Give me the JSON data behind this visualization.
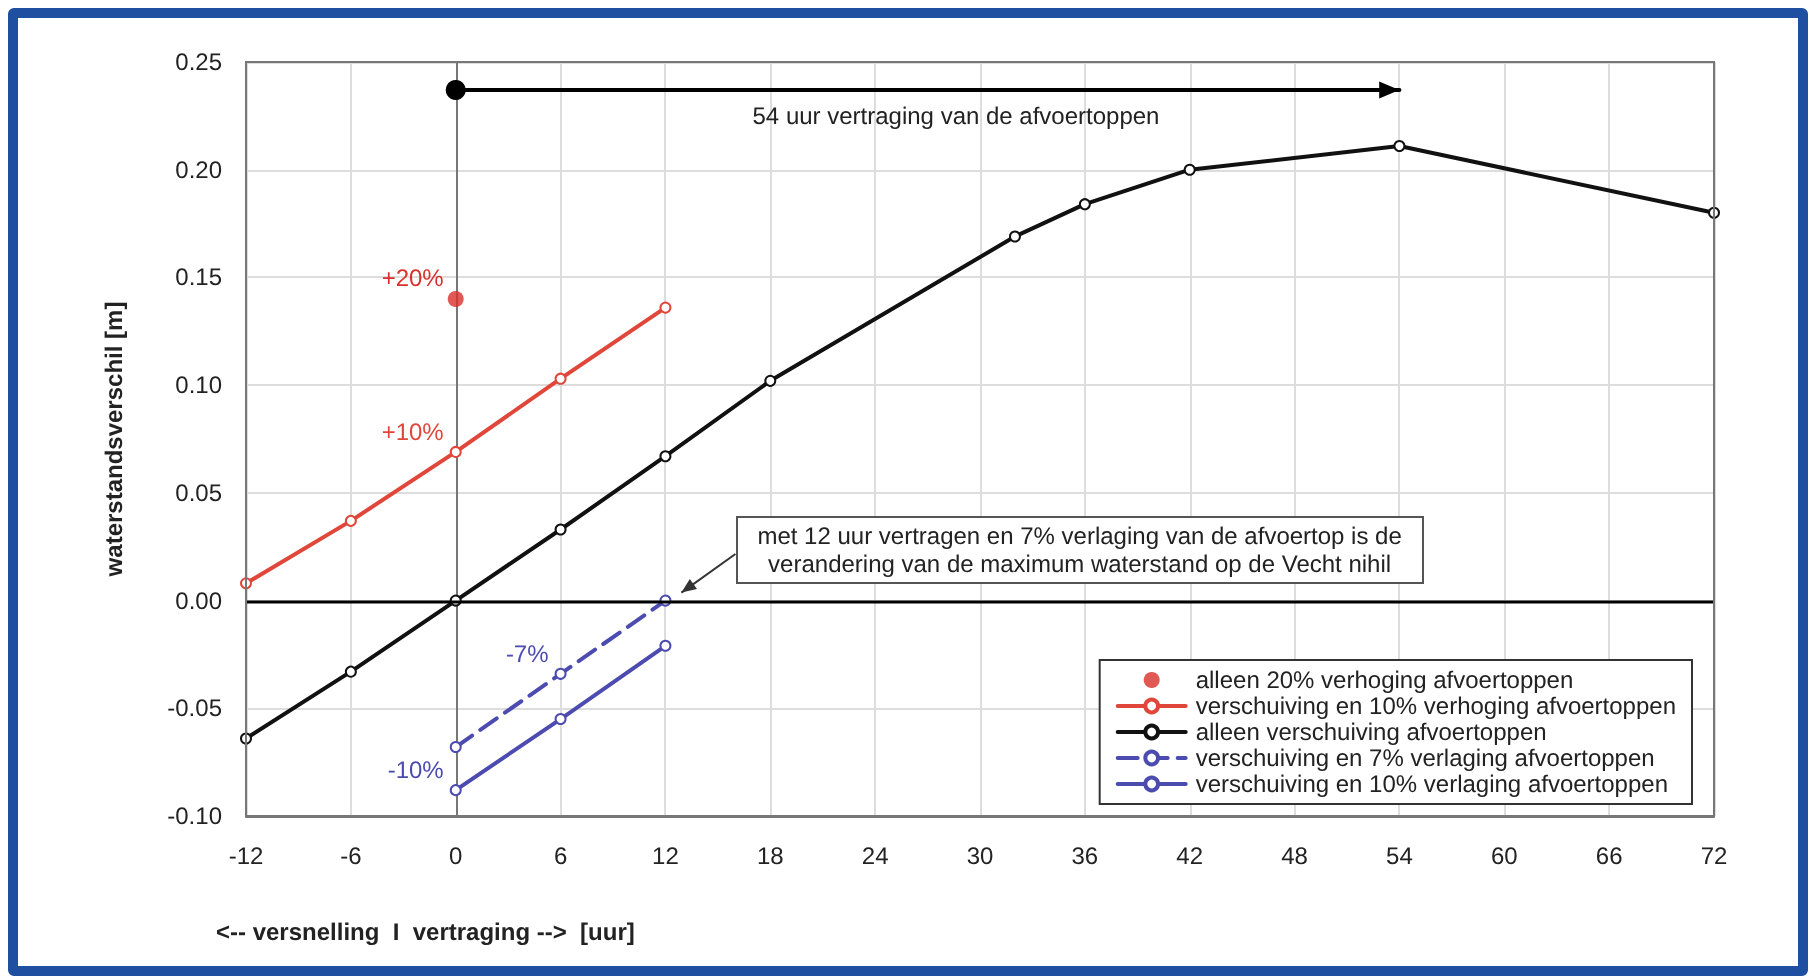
{
  "chart_data": {
    "type": "line",
    "xlabel": "<-- versnelling  I  vertraging -->  [uur]",
    "ylabel": "waterstandsverschil [m]",
    "xlim": [
      -12,
      72
    ],
    "xticks": [
      -12,
      -6,
      0,
      6,
      12,
      18,
      24,
      30,
      36,
      42,
      48,
      54,
      60,
      66,
      72
    ],
    "ylim": [
      -0.1,
      0.25
    ],
    "yticks": [
      {
        "value": -0.1,
        "label": "-0.10"
      },
      {
        "value": -0.05,
        "label": "-0.05"
      },
      {
        "value": 0,
        "label": "0.00"
      },
      {
        "value": 0.05,
        "label": "0.05"
      },
      {
        "value": 0.1,
        "label": "0.10"
      },
      {
        "value": 0.15,
        "label": "0.15"
      },
      {
        "value": 0.2,
        "label": "0.20"
      },
      {
        "value": 0.25,
        "label": "0.25"
      }
    ],
    "grid": true,
    "legend": "bottom right",
    "marker": "circle",
    "ref_lines": [
      {
        "axis": "y",
        "value": 0,
        "color": "#000000"
      }
    ],
    "series": [
      {
        "name": "alleen 20% verhoging afvoertoppen",
        "type": "scatter",
        "color": "#d9302b",
        "x": [
          0
        ],
        "values": [
          0.14
        ]
      },
      {
        "name": "verschuiving en 10% verhoging afvoertoppen",
        "color": "#e0463a",
        "x": [
          -12,
          -6,
          0,
          6,
          12
        ],
        "values": [
          0.008,
          0.037,
          0.069,
          0.103,
          0.136
        ]
      },
      {
        "name": "alleen verschuiving afvoertoppen",
        "color": "#111111",
        "x": [
          -12,
          -6,
          0,
          6,
          12,
          18,
          32,
          36,
          42,
          54,
          72
        ],
        "values": [
          -0.064,
          -0.033,
          0,
          0.033,
          0.067,
          0.102,
          0.169,
          0.184,
          0.2,
          0.211,
          0.18
        ]
      },
      {
        "name": "verschuiving en 7% verlaging afvoertoppen",
        "color": "#4b4bb0",
        "line_style": "dashed",
        "x": [
          0,
          6,
          12
        ],
        "values": [
          -0.068,
          -0.034,
          0
        ]
      },
      {
        "name": "verschuiving en 10% verlaging afvoertoppen",
        "color": "#4b4bb0",
        "x": [
          0,
          6,
          12
        ],
        "values": [
          -0.088,
          -0.055,
          -0.021
        ]
      },
      {
        "color": "#000000",
        "x": [
          0,
          54
        ],
        "values": [
          0.237,
          0.237
        ]
      }
    ],
    "annotations": [
      "54 uur vertraging van de afvoertoppen",
      {
        "text": "+20%",
        "x": 0,
        "y": 0.14
      },
      {
        "text": "+10%",
        "x": 0,
        "y": 0.069
      },
      {
        "text": "-7%",
        "x": 6,
        "y": -0.034
      },
      {
        "text": "-10%",
        "x": 0,
        "y": -0.088
      },
      {
        "text": "met 12 uur vertragen en 7% verlaging van de afvoertop is de\nverandering van de maximum waterstand op de Vecht nihil",
        "x": 12,
        "y": 0
      }
    ]
  }
}
